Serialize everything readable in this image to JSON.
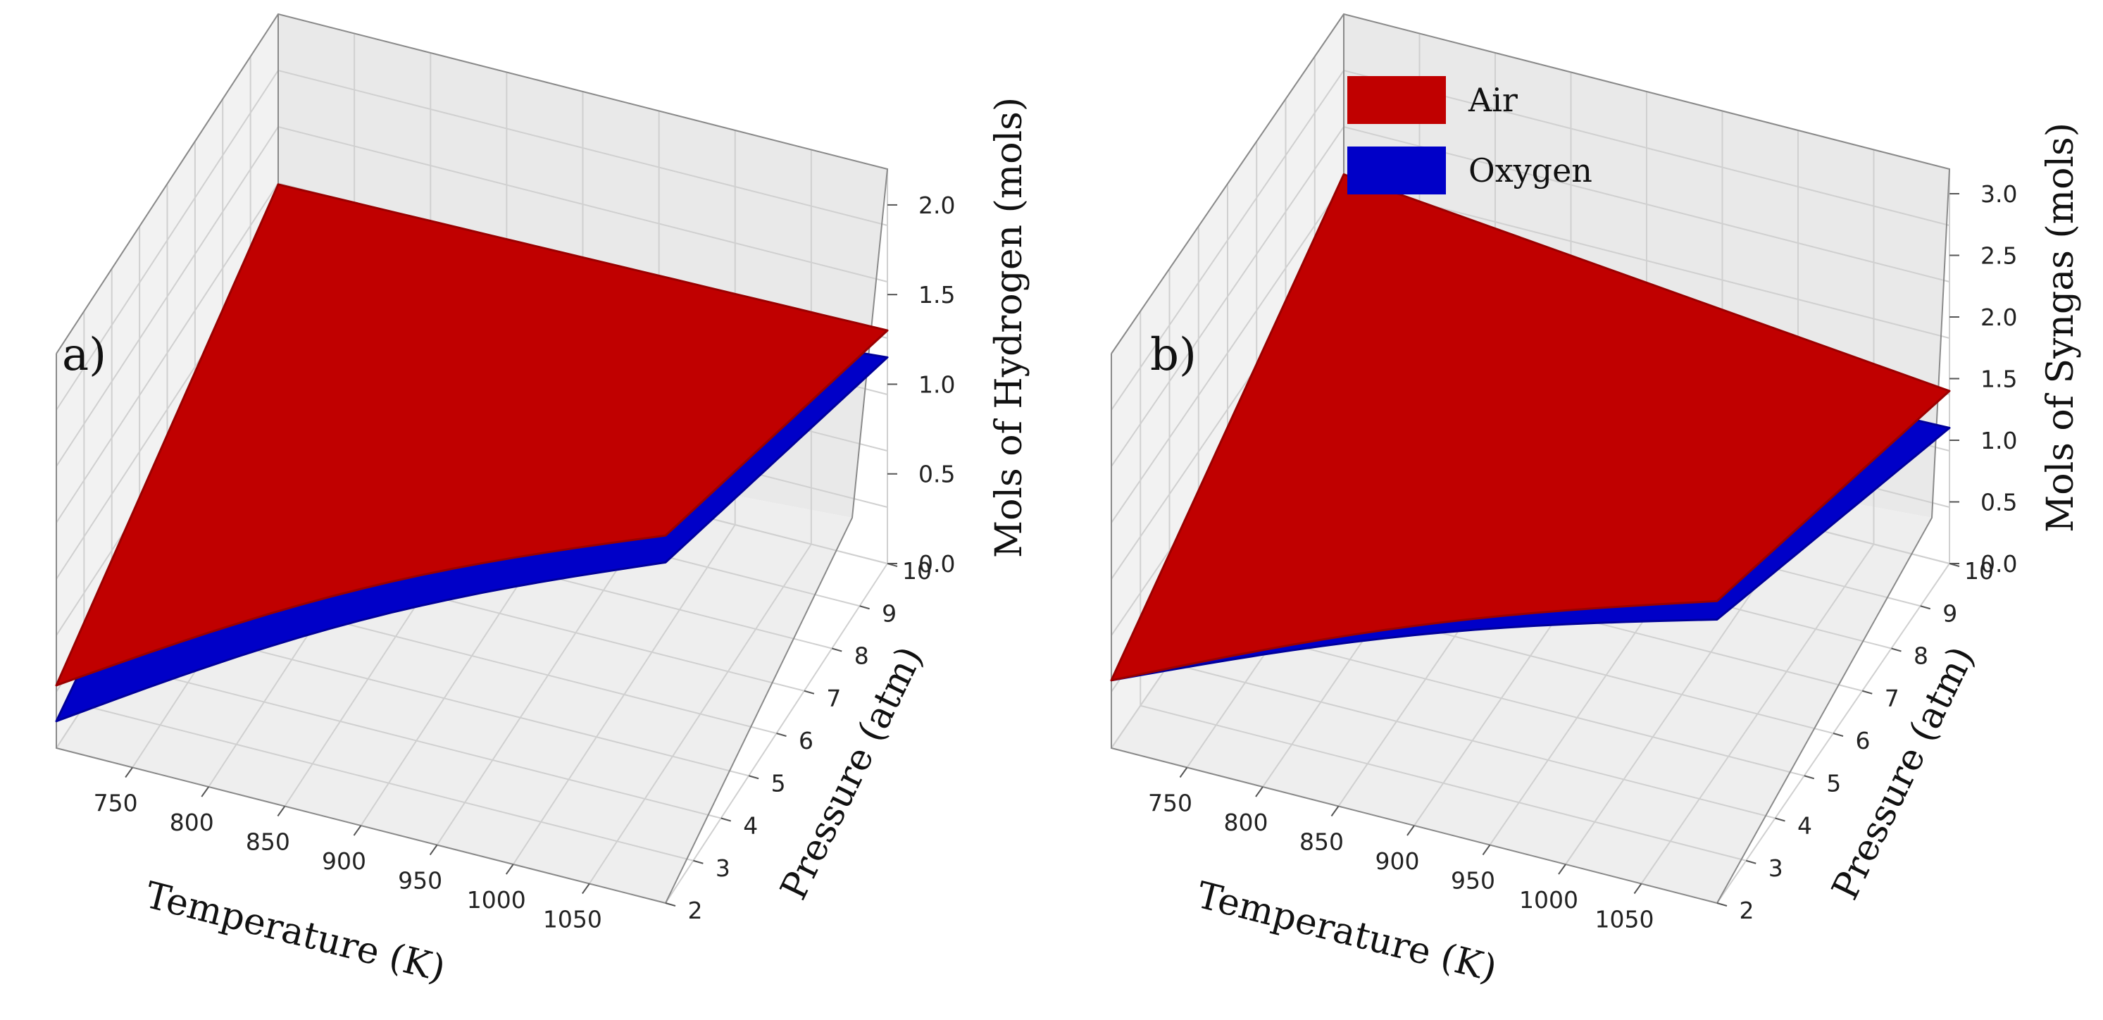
{
  "chart_data": [
    {
      "type": "surface",
      "panel_label": "a)",
      "xlabel": "Temperature (K)",
      "ylabel": "Pressure (atm)",
      "zlabel": "Mols of Hydrogen (mols)",
      "xlim": [
        700,
        1100
      ],
      "ylim": [
        2,
        10
      ],
      "zlim": [
        0,
        2.2
      ],
      "x_ticks": [
        "750",
        "800",
        "850",
        "900",
        "950",
        "1000",
        "1050"
      ],
      "y_ticks": [
        "2",
        "3",
        "4",
        "5",
        "6",
        "7",
        "8",
        "9",
        "10"
      ],
      "z_ticks": [
        "0.0",
        "0.5",
        "1.0",
        "1.5",
        "2.0"
      ],
      "grid": true,
      "series": [
        {
          "name": "Air",
          "color": "#c00000",
          "corners": {
            "T700_P2": 0.35,
            "T1100_P2": 2.05,
            "T700_P10": 1.25,
            "T1100_P10": 1.3
          }
        },
        {
          "name": "Oxygen",
          "color": "#0000c8",
          "corners": {
            "T700_P2": 0.15,
            "T1100_P2": 1.9,
            "T700_P10": 0.85,
            "T1100_P10": 1.15
          }
        }
      ]
    },
    {
      "type": "surface",
      "panel_label": "b)",
      "xlabel": "Temperature (K)",
      "ylabel": "Pressure (atm)",
      "zlabel": "Mols of Syngas (mols)",
      "xlim": [
        700,
        1100
      ],
      "ylim": [
        2,
        10
      ],
      "zlim": [
        0,
        3.2
      ],
      "x_ticks": [
        "750",
        "800",
        "850",
        "900",
        "950",
        "1000",
        "1050"
      ],
      "y_ticks": [
        "2",
        "3",
        "4",
        "5",
        "6",
        "7",
        "8",
        "9",
        "10"
      ],
      "z_ticks": [
        "0.0",
        "0.5",
        "1.0",
        "1.5",
        "2.0",
        "2.5",
        "3.0"
      ],
      "grid": true,
      "legend_position": "top-left",
      "series": [
        {
          "name": "Air",
          "color": "#c00000",
          "corners": {
            "T700_P2": 0.55,
            "T1100_P2": 2.45,
            "T700_P10": 1.9,
            "T1100_P10": 1.4
          }
        },
        {
          "name": "Oxygen",
          "color": "#0000c8",
          "corners": {
            "T700_P2": 0.55,
            "T1100_P2": 2.3,
            "T700_P10": 1.0,
            "T1100_P10": 1.1
          }
        }
      ]
    }
  ]
}
